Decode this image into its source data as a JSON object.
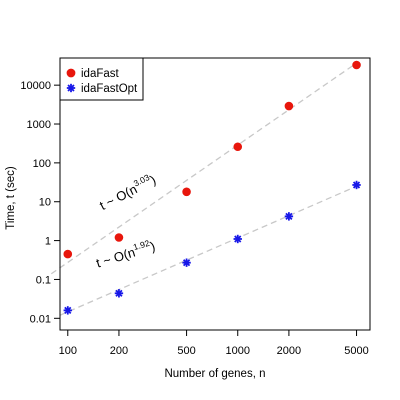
{
  "chart_data": {
    "type": "scatter",
    "xlabel": "Number of genes, n",
    "ylabel": "Time, t (sec)",
    "x_scale": "log",
    "y_scale": "log",
    "xlim": [
      90,
      6000
    ],
    "ylim": [
      0.005,
      50000
    ],
    "x_ticks": [
      100,
      200,
      500,
      1000,
      2000,
      5000
    ],
    "x_tick_labels": [
      "100",
      "200",
      "500",
      "1000",
      "2000",
      "5000"
    ],
    "y_ticks": [
      0.01,
      0.1,
      1,
      10,
      100,
      1000,
      10000
    ],
    "y_tick_labels": [
      "0.01",
      "0.1",
      "1",
      "10",
      "100",
      "1000",
      "10000"
    ],
    "grid": false,
    "legend_position": "top-left",
    "series": [
      {
        "name": "idaFast",
        "marker": "circle",
        "color": "#e8160c",
        "x": [
          100,
          200,
          500,
          1000,
          2000,
          5000
        ],
        "y": [
          0.45,
          1.2,
          18,
          260,
          2900,
          33000
        ]
      },
      {
        "name": "idaFastOpt",
        "marker": "asterisk",
        "color": "#1717e8",
        "x": [
          100,
          200,
          500,
          1000,
          2000,
          5000
        ],
        "y": [
          0.016,
          0.044,
          0.27,
          1.1,
          4.2,
          27
        ]
      }
    ],
    "trend_lines": [
      {
        "series": "idaFast",
        "x_start": 80,
        "y_start": 0.14,
        "x_end": 5000,
        "y_end": 37000,
        "color": "#c8c8c8"
      },
      {
        "series": "idaFastOpt",
        "x_start": 90,
        "y_start": 0.012,
        "x_end": 5000,
        "y_end": 25,
        "color": "#c8c8c8"
      }
    ],
    "annotations": [
      {
        "prefix": "t ~ O(n",
        "exponent": "3.03",
        "suffix": ")",
        "x": 160,
        "y": 6,
        "angle_deg": -27
      },
      {
        "prefix": "t ~ O(n",
        "exponent": "1.92",
        "suffix": ")",
        "x": 150,
        "y": 0.2,
        "angle_deg": -17
      }
    ]
  }
}
